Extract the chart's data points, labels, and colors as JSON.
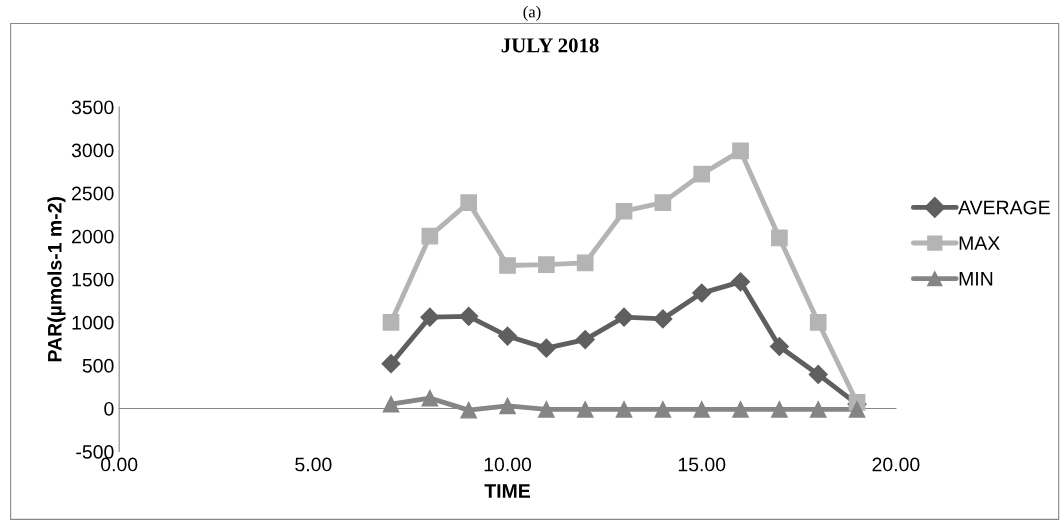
{
  "chart_data": {
    "type": "line",
    "title": "JULY 2018",
    "xlabel": "TIME",
    "ylabel": "PAR(µmols-1 m-2)",
    "annotations": [
      "(a)"
    ],
    "x": [
      7,
      8,
      9,
      10,
      11,
      12,
      13,
      14,
      15,
      16,
      17,
      18,
      19
    ],
    "series": [
      {
        "name": "AVERAGE",
        "color": "#5f5f5f",
        "marker": "diamond",
        "values": [
          520,
          1060,
          1070,
          840,
          700,
          800,
          1060,
          1040,
          1340,
          1470,
          720,
          395,
          50
        ]
      },
      {
        "name": "MAX",
        "color": "#b4b4b4",
        "marker": "square",
        "values": [
          1000,
          2000,
          2390,
          1660,
          1670,
          1690,
          2290,
          2390,
          2720,
          2990,
          1980,
          1000,
          70
        ]
      },
      {
        "name": "MIN",
        "color": "#858585",
        "marker": "triangle",
        "values": [
          50,
          120,
          -20,
          30,
          -10,
          -10,
          -10,
          -10,
          -10,
          -10,
          -10,
          -10,
          -10
        ]
      }
    ],
    "xlim": [
      0,
      20
    ],
    "xticks": [
      {
        "value": 0,
        "label": "0.00"
      },
      {
        "value": 5,
        "label": "5.00"
      },
      {
        "value": 10,
        "label": "10.00"
      },
      {
        "value": 15,
        "label": "15.00"
      },
      {
        "value": 20,
        "label": "20.00"
      }
    ],
    "ylim": [
      -500,
      3500
    ],
    "yticks": [
      -500,
      0,
      500,
      1000,
      1500,
      2000,
      2500,
      3000,
      3500
    ],
    "grid": false,
    "legend": "right",
    "line_style": "solid"
  }
}
